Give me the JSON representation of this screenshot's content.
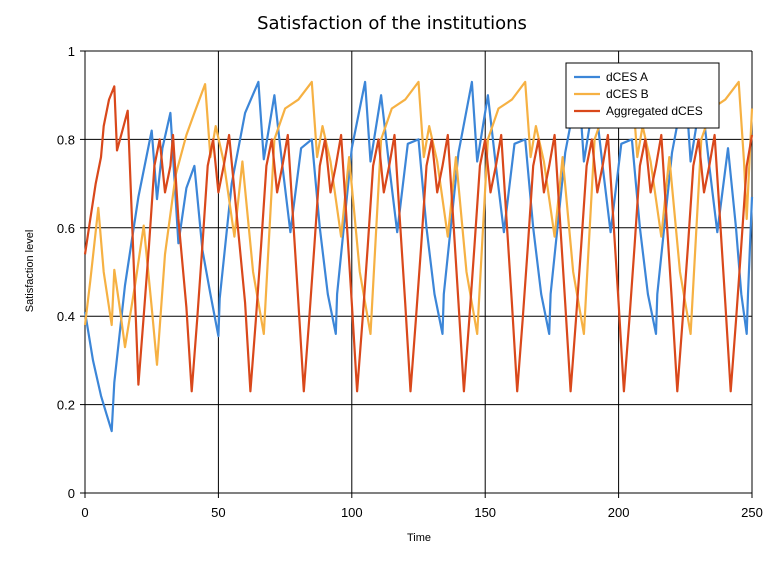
{
  "chart_data": {
    "type": "line",
    "title": "Satisfaction of the institutions",
    "xlabel": "Time",
    "ylabel": "Satisfaction level",
    "xlim": [
      0,
      250
    ],
    "ylim": [
      0,
      1
    ],
    "x_ticks": [
      "0",
      "50",
      "100",
      "150",
      "200",
      "250"
    ],
    "y_ticks": [
      "0",
      "0.2",
      "0.4",
      "0.6",
      "0.8",
      "1"
    ],
    "grid": true,
    "legend_position": "top-right",
    "series": [
      {
        "name": "dCES A",
        "color": "#3c86d8",
        "points": [
          [
            0,
            0.41
          ],
          [
            3,
            0.3
          ],
          [
            6,
            0.22
          ],
          [
            8,
            0.18
          ],
          [
            10,
            0.14
          ],
          [
            11,
            0.25
          ],
          [
            15,
            0.47
          ],
          [
            20,
            0.67
          ],
          [
            25,
            0.82
          ],
          [
            27,
            0.665
          ],
          [
            29,
            0.78
          ],
          [
            32,
            0.86
          ],
          [
            35,
            0.565
          ],
          [
            38,
            0.69
          ],
          [
            41,
            0.74
          ],
          [
            44,
            0.55
          ],
          [
            47,
            0.45
          ],
          [
            50,
            0.355
          ],
          [
            50.5,
            0.44
          ],
          [
            55,
            0.7
          ],
          [
            60,
            0.86
          ],
          [
            65,
            0.93
          ],
          [
            67,
            0.755
          ],
          [
            71,
            0.9
          ],
          [
            74,
            0.74
          ],
          [
            77,
            0.59
          ],
          [
            81,
            0.78
          ],
          [
            85,
            0.8
          ],
          [
            88,
            0.6
          ],
          [
            91,
            0.45
          ],
          [
            94,
            0.36
          ],
          [
            94.5,
            0.45
          ],
          [
            100,
            0.78
          ],
          [
            105,
            0.93
          ],
          [
            107,
            0.75
          ],
          [
            111,
            0.9
          ],
          [
            114,
            0.74
          ],
          [
            117,
            0.59
          ],
          [
            121,
            0.79
          ],
          [
            125,
            0.8
          ],
          [
            128,
            0.6
          ],
          [
            131,
            0.45
          ],
          [
            134,
            0.36
          ],
          [
            134.5,
            0.45
          ],
          [
            140,
            0.77
          ],
          [
            145,
            0.93
          ],
          [
            147,
            0.75
          ],
          [
            151,
            0.9
          ],
          [
            154,
            0.74
          ],
          [
            157,
            0.59
          ],
          [
            161,
            0.79
          ],
          [
            165,
            0.8
          ],
          [
            168,
            0.6
          ],
          [
            171,
            0.45
          ],
          [
            174,
            0.36
          ],
          [
            174.5,
            0.45
          ],
          [
            180,
            0.77
          ],
          [
            185,
            0.93
          ],
          [
            187,
            0.75
          ],
          [
            191,
            0.9
          ],
          [
            194,
            0.74
          ],
          [
            197,
            0.59
          ],
          [
            201,
            0.79
          ],
          [
            205,
            0.8
          ],
          [
            208,
            0.6
          ],
          [
            211,
            0.45
          ],
          [
            214,
            0.36
          ],
          [
            214.5,
            0.45
          ],
          [
            220,
            0.77
          ],
          [
            225,
            0.93
          ],
          [
            227,
            0.75
          ],
          [
            231,
            0.9
          ],
          [
            234,
            0.74
          ],
          [
            237,
            0.59
          ],
          [
            241,
            0.78
          ],
          [
            244,
            0.6
          ],
          [
            246,
            0.45
          ],
          [
            248,
            0.36
          ],
          [
            248.5,
            0.45
          ],
          [
            250,
            0.67
          ]
        ]
      },
      {
        "name": "dCES B",
        "color": "#f6b143",
        "points": [
          [
            0,
            0.38
          ],
          [
            2,
            0.48
          ],
          [
            5,
            0.645
          ],
          [
            7,
            0.5
          ],
          [
            10,
            0.38
          ],
          [
            11,
            0.505
          ],
          [
            13,
            0.42
          ],
          [
            15,
            0.33
          ],
          [
            19,
            0.48
          ],
          [
            22,
            0.605
          ],
          [
            25,
            0.42
          ],
          [
            27,
            0.29
          ],
          [
            30,
            0.54
          ],
          [
            34,
            0.72
          ],
          [
            38,
            0.81
          ],
          [
            41,
            0.86
          ],
          [
            45,
            0.925
          ],
          [
            47,
            0.76
          ],
          [
            49,
            0.83
          ],
          [
            52,
            0.75
          ],
          [
            56,
            0.58
          ],
          [
            59,
            0.75
          ],
          [
            63,
            0.5
          ],
          [
            67,
            0.36
          ],
          [
            71,
            0.8
          ],
          [
            75,
            0.87
          ],
          [
            80,
            0.89
          ],
          [
            85,
            0.93
          ],
          [
            87,
            0.76
          ],
          [
            89,
            0.83
          ],
          [
            92,
            0.75
          ],
          [
            96,
            0.58
          ],
          [
            99,
            0.76
          ],
          [
            103,
            0.5
          ],
          [
            107,
            0.36
          ],
          [
            111,
            0.8
          ],
          [
            115,
            0.87
          ],
          [
            120,
            0.89
          ],
          [
            125,
            0.93
          ],
          [
            127,
            0.76
          ],
          [
            129,
            0.83
          ],
          [
            132,
            0.75
          ],
          [
            136,
            0.58
          ],
          [
            139,
            0.76
          ],
          [
            143,
            0.5
          ],
          [
            147,
            0.36
          ],
          [
            151,
            0.8
          ],
          [
            155,
            0.87
          ],
          [
            160,
            0.89
          ],
          [
            165,
            0.93
          ],
          [
            167,
            0.76
          ],
          [
            169,
            0.83
          ],
          [
            172,
            0.75
          ],
          [
            176,
            0.58
          ],
          [
            179,
            0.76
          ],
          [
            183,
            0.5
          ],
          [
            187,
            0.36
          ],
          [
            191,
            0.8
          ],
          [
            195,
            0.87
          ],
          [
            200,
            0.89
          ],
          [
            205,
            0.93
          ],
          [
            207,
            0.76
          ],
          [
            209,
            0.83
          ],
          [
            212,
            0.75
          ],
          [
            216,
            0.58
          ],
          [
            219,
            0.76
          ],
          [
            223,
            0.5
          ],
          [
            227,
            0.36
          ],
          [
            231,
            0.8
          ],
          [
            235,
            0.87
          ],
          [
            240,
            0.89
          ],
          [
            245,
            0.93
          ],
          [
            247,
            0.75
          ],
          [
            248,
            0.62
          ],
          [
            250,
            0.87
          ]
        ]
      },
      {
        "name": "Aggregated dCES",
        "color": "#d9481b",
        "points": [
          [
            0,
            0.54
          ],
          [
            2,
            0.62
          ],
          [
            4,
            0.7
          ],
          [
            6,
            0.76
          ],
          [
            7,
            0.83
          ],
          [
            9,
            0.89
          ],
          [
            11,
            0.92
          ],
          [
            12,
            0.775
          ],
          [
            14,
            0.82
          ],
          [
            16,
            0.865
          ],
          [
            18,
            0.56
          ],
          [
            20,
            0.245
          ],
          [
            22,
            0.4
          ],
          [
            24,
            0.56
          ],
          [
            26,
            0.74
          ],
          [
            28,
            0.8
          ],
          [
            30,
            0.68
          ],
          [
            32,
            0.74
          ],
          [
            33,
            0.81
          ],
          [
            35,
            0.62
          ],
          [
            38,
            0.42
          ],
          [
            40,
            0.23
          ],
          [
            42,
            0.39
          ],
          [
            44,
            0.56
          ],
          [
            46,
            0.74
          ],
          [
            48,
            0.8
          ],
          [
            50,
            0.68
          ],
          [
            52,
            0.74
          ],
          [
            54,
            0.81
          ],
          [
            57,
            0.62
          ],
          [
            60,
            0.43
          ],
          [
            62,
            0.23
          ],
          [
            64,
            0.39
          ],
          [
            66,
            0.56
          ],
          [
            68,
            0.74
          ],
          [
            70,
            0.8
          ],
          [
            72,
            0.68
          ],
          [
            74,
            0.74
          ],
          [
            76,
            0.81
          ],
          [
            78,
            0.62
          ],
          [
            80,
            0.43
          ],
          [
            82,
            0.23
          ],
          [
            84,
            0.39
          ],
          [
            86,
            0.56
          ],
          [
            88,
            0.74
          ],
          [
            90,
            0.8
          ],
          [
            92,
            0.68
          ],
          [
            94,
            0.74
          ],
          [
            96,
            0.81
          ],
          [
            98,
            0.62
          ],
          [
            100,
            0.43
          ],
          [
            102,
            0.23
          ],
          [
            104,
            0.39
          ],
          [
            106,
            0.56
          ],
          [
            108,
            0.74
          ],
          [
            110,
            0.8
          ],
          [
            112,
            0.68
          ],
          [
            114,
            0.74
          ],
          [
            116,
            0.81
          ],
          [
            118,
            0.62
          ],
          [
            120,
            0.43
          ],
          [
            122,
            0.23
          ],
          [
            124,
            0.39
          ],
          [
            126,
            0.56
          ],
          [
            128,
            0.74
          ],
          [
            130,
            0.8
          ],
          [
            132,
            0.68
          ],
          [
            134,
            0.74
          ],
          [
            136,
            0.81
          ],
          [
            138,
            0.62
          ],
          [
            140,
            0.43
          ],
          [
            142,
            0.23
          ],
          [
            144,
            0.39
          ],
          [
            146,
            0.56
          ],
          [
            148,
            0.74
          ],
          [
            150,
            0.8
          ],
          [
            152,
            0.68
          ],
          [
            154,
            0.74
          ],
          [
            156,
            0.81
          ],
          [
            158,
            0.62
          ],
          [
            160,
            0.43
          ],
          [
            162,
            0.23
          ],
          [
            164,
            0.39
          ],
          [
            166,
            0.56
          ],
          [
            168,
            0.74
          ],
          [
            170,
            0.8
          ],
          [
            172,
            0.68
          ],
          [
            174,
            0.74
          ],
          [
            176,
            0.81
          ],
          [
            178,
            0.62
          ],
          [
            180,
            0.43
          ],
          [
            182,
            0.23
          ],
          [
            184,
            0.39
          ],
          [
            186,
            0.56
          ],
          [
            188,
            0.74
          ],
          [
            190,
            0.8
          ],
          [
            192,
            0.68
          ],
          [
            194,
            0.74
          ],
          [
            196,
            0.81
          ],
          [
            198,
            0.62
          ],
          [
            200,
            0.43
          ],
          [
            202,
            0.23
          ],
          [
            204,
            0.39
          ],
          [
            206,
            0.56
          ],
          [
            208,
            0.74
          ],
          [
            210,
            0.8
          ],
          [
            212,
            0.68
          ],
          [
            214,
            0.74
          ],
          [
            216,
            0.81
          ],
          [
            218,
            0.62
          ],
          [
            220,
            0.43
          ],
          [
            222,
            0.23
          ],
          [
            224,
            0.39
          ],
          [
            226,
            0.56
          ],
          [
            228,
            0.74
          ],
          [
            230,
            0.8
          ],
          [
            232,
            0.68
          ],
          [
            234,
            0.74
          ],
          [
            236,
            0.81
          ],
          [
            238,
            0.62
          ],
          [
            240,
            0.43
          ],
          [
            242,
            0.23
          ],
          [
            244,
            0.39
          ],
          [
            246,
            0.56
          ],
          [
            248,
            0.74
          ],
          [
            250,
            0.81
          ]
        ]
      }
    ]
  }
}
